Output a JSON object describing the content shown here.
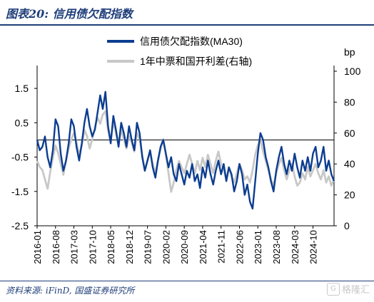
{
  "figure": {
    "title": "图表20: 信用债欠配指数",
    "source": "资料来源: iFinD, 国盛证券研究所",
    "watermark": "格隆汇",
    "watermark_logo": "G"
  },
  "colors": {
    "primary_series": "#0b3d91",
    "secondary_series": "#c8c8c8",
    "title": "#1f3e7a",
    "axis": "#000000"
  },
  "chart_data": {
    "type": "line",
    "title": "",
    "right_axis_unit": "bp",
    "left_axis": {
      "ticks": [
        1.5,
        0.5,
        -0.5,
        -1.5,
        -2.5
      ],
      "ylim": [
        -2.5,
        2.0
      ]
    },
    "right_axis": {
      "ticks": [
        100,
        80,
        60,
        40,
        20,
        0
      ],
      "ylim": [
        0,
        100
      ]
    },
    "x_tick_labels": [
      "2016-01",
      "2016-08",
      "2017-03",
      "2017-10",
      "2018-05",
      "2018-12",
      "2019-07",
      "2020-02",
      "2020-09",
      "2021-04",
      "2021-11",
      "2022-06",
      "2023-01",
      "2023-08",
      "2024-03",
      "2024-10"
    ],
    "xlim": [
      "2016-01",
      "2025-06"
    ],
    "zero_line": 0,
    "legend": "top-center",
    "series": [
      {
        "name": "信用债欠配指数(MA30)",
        "axis": "left",
        "color": "#0b3d91",
        "points": [
          [
            "2016-01",
            0.0
          ],
          [
            "2016-02",
            -0.3
          ],
          [
            "2016-03",
            -0.2
          ],
          [
            "2016-04",
            0.1
          ],
          [
            "2016-05",
            -0.5
          ],
          [
            "2016-06",
            -0.8
          ],
          [
            "2016-07",
            -0.3
          ],
          [
            "2016-08",
            0.6
          ],
          [
            "2016-09",
            0.4
          ],
          [
            "2016-10",
            -0.4
          ],
          [
            "2016-11",
            -0.9
          ],
          [
            "2016-12",
            -0.6
          ],
          [
            "2017-01",
            -0.1
          ],
          [
            "2017-02",
            0.6
          ],
          [
            "2017-03",
            0.4
          ],
          [
            "2017-04",
            -0.2
          ],
          [
            "2017-05",
            -0.6
          ],
          [
            "2017-06",
            -0.1
          ],
          [
            "2017-07",
            0.5
          ],
          [
            "2017-08",
            0.9
          ],
          [
            "2017-09",
            0.4
          ],
          [
            "2017-10",
            0.1
          ],
          [
            "2017-11",
            0.3
          ],
          [
            "2017-12",
            0.8
          ],
          [
            "2018-01",
            1.3
          ],
          [
            "2018-02",
            0.9
          ],
          [
            "2018-03",
            1.4
          ],
          [
            "2018-04",
            0.4
          ],
          [
            "2018-05",
            -0.1
          ],
          [
            "2018-06",
            0.7
          ],
          [
            "2018-07",
            0.3
          ],
          [
            "2018-08",
            -0.2
          ],
          [
            "2018-09",
            0.5
          ],
          [
            "2018-10",
            0.2
          ],
          [
            "2018-11",
            -0.2
          ],
          [
            "2018-12",
            0.4
          ],
          [
            "2019-01",
            0.0
          ],
          [
            "2019-02",
            -0.3
          ],
          [
            "2019-03",
            0.5
          ],
          [
            "2019-04",
            0.2
          ],
          [
            "2019-05",
            -0.5
          ],
          [
            "2019-06",
            -0.9
          ],
          [
            "2019-07",
            -0.6
          ],
          [
            "2019-08",
            -0.3
          ],
          [
            "2019-09",
            -0.8
          ],
          [
            "2019-10",
            -1.1
          ],
          [
            "2019-11",
            -0.6
          ],
          [
            "2019-12",
            -0.2
          ],
          [
            "2020-01",
            0.0
          ],
          [
            "2020-02",
            -0.4
          ],
          [
            "2020-03",
            -0.8
          ],
          [
            "2020-04",
            -0.5
          ],
          [
            "2020-05",
            -1.0
          ],
          [
            "2020-06",
            -1.2
          ],
          [
            "2020-07",
            -0.7
          ],
          [
            "2020-08",
            -1.0
          ],
          [
            "2020-09",
            -1.3
          ],
          [
            "2020-10",
            -0.9
          ],
          [
            "2020-11",
            -1.1
          ],
          [
            "2020-12",
            -0.7
          ],
          [
            "2021-01",
            -1.2
          ],
          [
            "2021-02",
            -1.0
          ],
          [
            "2021-03",
            -1.4
          ],
          [
            "2021-04",
            -0.8
          ],
          [
            "2021-05",
            -1.1
          ],
          [
            "2021-06",
            -0.6
          ],
          [
            "2021-07",
            -1.0
          ],
          [
            "2021-08",
            -1.3
          ],
          [
            "2021-09",
            -0.9
          ],
          [
            "2021-10",
            -0.6
          ],
          [
            "2021-11",
            -1.0
          ],
          [
            "2021-12",
            -0.7
          ],
          [
            "2022-01",
            -1.2
          ],
          [
            "2022-02",
            -0.8
          ],
          [
            "2022-03",
            -1.0
          ],
          [
            "2022-04",
            -1.5
          ],
          [
            "2022-05",
            -1.2
          ],
          [
            "2022-06",
            -0.7
          ],
          [
            "2022-07",
            -1.0
          ],
          [
            "2022-08",
            -1.6
          ],
          [
            "2022-09",
            -1.3
          ],
          [
            "2022-10",
            -1.8
          ],
          [
            "2022-11",
            -2.0
          ],
          [
            "2022-12",
            -1.2
          ],
          [
            "2023-01",
            -0.4
          ],
          [
            "2023-02",
            0.2
          ],
          [
            "2023-03",
            0.0
          ],
          [
            "2023-04",
            -0.5
          ],
          [
            "2023-05",
            -0.8
          ],
          [
            "2023-06",
            -1.2
          ],
          [
            "2023-07",
            -1.5
          ],
          [
            "2023-08",
            -0.9
          ],
          [
            "2023-09",
            -0.5
          ],
          [
            "2023-10",
            -0.2
          ],
          [
            "2023-11",
            -0.7
          ],
          [
            "2023-12",
            -1.0
          ],
          [
            "2024-01",
            -0.6
          ],
          [
            "2024-02",
            -0.9
          ],
          [
            "2024-03",
            -0.4
          ],
          [
            "2024-04",
            -0.8
          ],
          [
            "2024-05",
            -1.1
          ],
          [
            "2024-06",
            -0.6
          ],
          [
            "2024-07",
            -0.9
          ],
          [
            "2024-08",
            -0.5
          ],
          [
            "2024-09",
            -0.9
          ],
          [
            "2024-10",
            -0.4
          ],
          [
            "2024-11",
            -0.2
          ],
          [
            "2024-12",
            -0.8
          ],
          [
            "2025-01",
            -0.6
          ],
          [
            "2025-02",
            -0.2
          ],
          [
            "2025-03",
            -0.9
          ],
          [
            "2025-04",
            -0.6
          ],
          [
            "2025-05",
            -1.0
          ],
          [
            "2025-06",
            -1.2
          ]
        ]
      },
      {
        "name": "1年中票和国开利差(右轴)",
        "axis": "right",
        "color": "#c8c8c8",
        "points": [
          [
            "2016-01",
            42
          ],
          [
            "2016-02",
            38
          ],
          [
            "2016-03",
            36
          ],
          [
            "2016-04",
            30
          ],
          [
            "2016-05",
            24
          ],
          [
            "2016-06",
            35
          ],
          [
            "2016-07",
            44
          ],
          [
            "2016-08",
            52
          ],
          [
            "2016-09",
            47
          ],
          [
            "2016-10",
            40
          ],
          [
            "2016-11",
            33
          ],
          [
            "2016-12",
            42
          ],
          [
            "2017-01",
            50
          ],
          [
            "2017-02",
            56
          ],
          [
            "2017-03",
            60
          ],
          [
            "2017-04",
            54
          ],
          [
            "2017-05",
            46
          ],
          [
            "2017-06",
            52
          ],
          [
            "2017-07",
            62
          ],
          [
            "2017-08",
            58
          ],
          [
            "2017-09",
            50
          ],
          [
            "2017-10",
            56
          ],
          [
            "2017-11",
            64
          ],
          [
            "2017-12",
            70
          ],
          [
            "2018-01",
            66
          ],
          [
            "2018-02",
            72
          ],
          [
            "2018-03",
            74
          ],
          [
            "2018-04",
            62
          ],
          [
            "2018-05",
            55
          ],
          [
            "2018-06",
            68
          ],
          [
            "2018-07",
            60
          ],
          [
            "2018-08",
            52
          ],
          [
            "2018-09",
            62
          ],
          [
            "2018-10",
            56
          ],
          [
            "2018-11",
            50
          ],
          [
            "2018-12",
            58
          ],
          [
            "2019-01",
            54
          ],
          [
            "2019-02",
            48
          ],
          [
            "2019-03",
            60
          ],
          [
            "2019-04",
            56
          ],
          [
            "2019-05",
            46
          ],
          [
            "2019-06",
            36
          ],
          [
            "2019-07",
            42
          ],
          [
            "2019-08",
            48
          ],
          [
            "2019-09",
            40
          ],
          [
            "2019-10",
            34
          ],
          [
            "2019-11",
            42
          ],
          [
            "2019-12",
            50
          ],
          [
            "2020-01",
            56
          ],
          [
            "2020-02",
            46
          ],
          [
            "2020-03",
            34
          ],
          [
            "2020-04",
            22
          ],
          [
            "2020-05",
            28
          ],
          [
            "2020-06",
            36
          ],
          [
            "2020-07",
            42
          ],
          [
            "2020-08",
            38
          ],
          [
            "2020-09",
            34
          ],
          [
            "2020-10",
            40
          ],
          [
            "2020-11",
            46
          ],
          [
            "2020-12",
            40
          ],
          [
            "2021-01",
            34
          ],
          [
            "2021-02",
            42
          ],
          [
            "2021-03",
            36
          ],
          [
            "2021-04",
            44
          ],
          [
            "2021-05",
            38
          ],
          [
            "2021-06",
            46
          ],
          [
            "2021-07",
            40
          ],
          [
            "2021-08",
            34
          ],
          [
            "2021-09",
            42
          ],
          [
            "2021-10",
            48
          ],
          [
            "2021-11",
            40
          ],
          [
            "2021-12",
            36
          ],
          [
            "2022-01",
            30
          ],
          [
            "2022-02",
            38
          ],
          [
            "2022-03",
            32
          ],
          [
            "2022-04",
            28
          ],
          [
            "2022-05",
            34
          ],
          [
            "2022-06",
            40
          ],
          [
            "2022-07",
            36
          ],
          [
            "2022-08",
            30
          ],
          [
            "2022-09",
            32
          ],
          [
            "2022-10",
            28
          ],
          [
            "2022-11",
            36
          ],
          [
            "2022-12",
            46
          ],
          [
            "2023-01",
            52
          ],
          [
            "2023-02",
            56
          ],
          [
            "2023-03",
            48
          ],
          [
            "2023-04",
            42
          ],
          [
            "2023-05",
            36
          ],
          [
            "2023-06",
            30
          ],
          [
            "2023-07",
            26
          ],
          [
            "2023-08",
            34
          ],
          [
            "2023-09",
            40
          ],
          [
            "2023-10",
            44
          ],
          [
            "2023-11",
            36
          ],
          [
            "2023-12",
            30
          ],
          [
            "2024-01",
            36
          ],
          [
            "2024-02",
            40
          ],
          [
            "2024-03",
            32
          ],
          [
            "2024-04",
            26
          ],
          [
            "2024-05",
            28
          ],
          [
            "2024-06",
            34
          ],
          [
            "2024-07",
            30
          ],
          [
            "2024-08",
            38
          ],
          [
            "2024-09",
            32
          ],
          [
            "2024-10",
            36
          ],
          [
            "2024-11",
            40
          ],
          [
            "2024-12",
            34
          ],
          [
            "2025-01",
            30
          ],
          [
            "2025-02",
            36
          ],
          [
            "2025-03",
            28
          ],
          [
            "2025-04",
            32
          ],
          [
            "2025-05",
            26
          ],
          [
            "2025-06",
            30
          ]
        ]
      }
    ]
  }
}
